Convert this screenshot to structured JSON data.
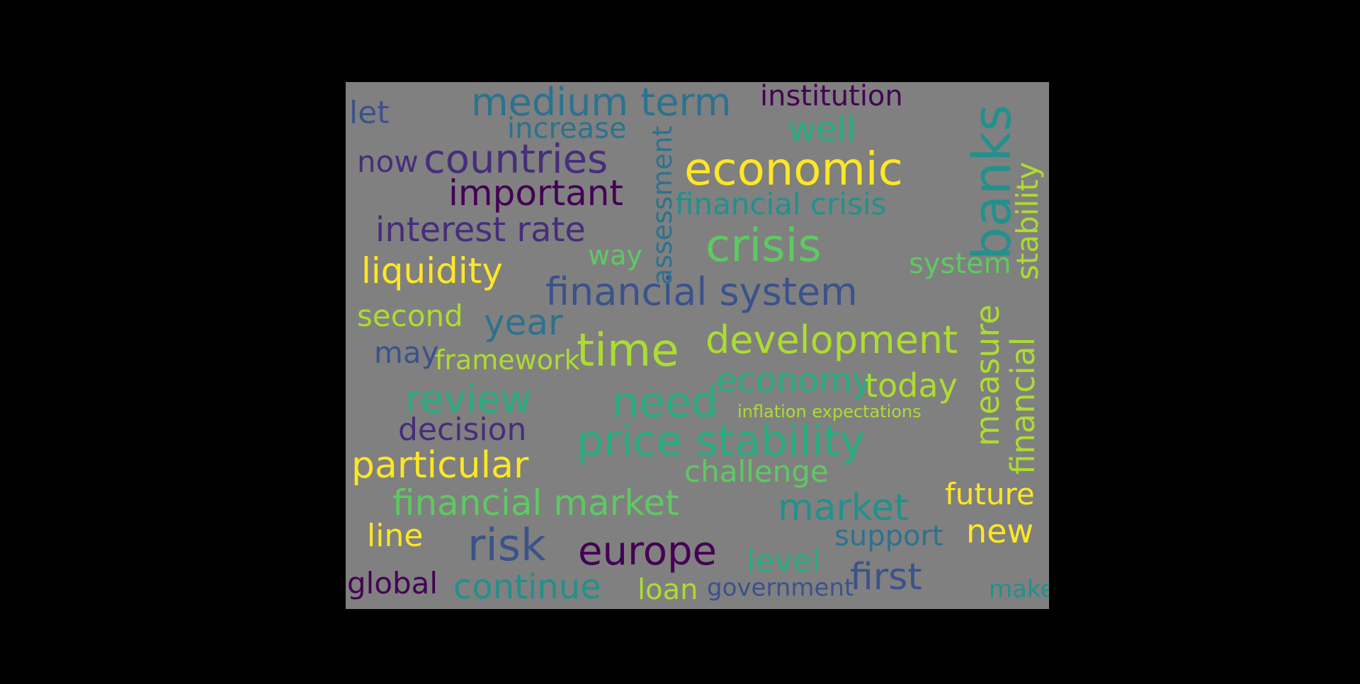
{
  "words": {
    "medium_term": "medium term",
    "institution": "institution",
    "let": "let",
    "increase": "increase",
    "well": "well",
    "banks": "banks",
    "stability": "stability",
    "now": "now",
    "countries": "countries",
    "economic": "economic",
    "important": "important",
    "assessment": "assessment",
    "financial_crisis": "financial crisis",
    "interest_rate": "interest rate",
    "crisis": "crisis",
    "way": "way",
    "system": "system",
    "liquidity": "liquidity",
    "financial_system": "financial system",
    "second": "second",
    "year": "year",
    "measure": "measure",
    "financial": "financial",
    "development": "development",
    "may": "may",
    "framework": "framework",
    "time": "time",
    "economy": "economy",
    "today": "today",
    "review": "review",
    "need": "need",
    "inflation_expectations": "inflation expectations",
    "decision": "decision",
    "price_stability": "price stability",
    "particular": "particular",
    "challenge": "challenge",
    "financial_market": "financial market",
    "market": "market",
    "future": "future",
    "line": "line",
    "risk": "risk",
    "europe": "europe",
    "support": "support",
    "new": "new",
    "level": "level",
    "first": "first",
    "global": "global",
    "continue": "continue",
    "loan": "loan",
    "government": "government",
    "make": "make"
  },
  "colors": {
    "background": "#808080",
    "frame": "#000000",
    "palette": [
      "#440154",
      "#472d7b",
      "#3b528b",
      "#2c728e",
      "#21918c",
      "#28ae80",
      "#5ec962",
      "#addc30",
      "#fde725"
    ]
  }
}
